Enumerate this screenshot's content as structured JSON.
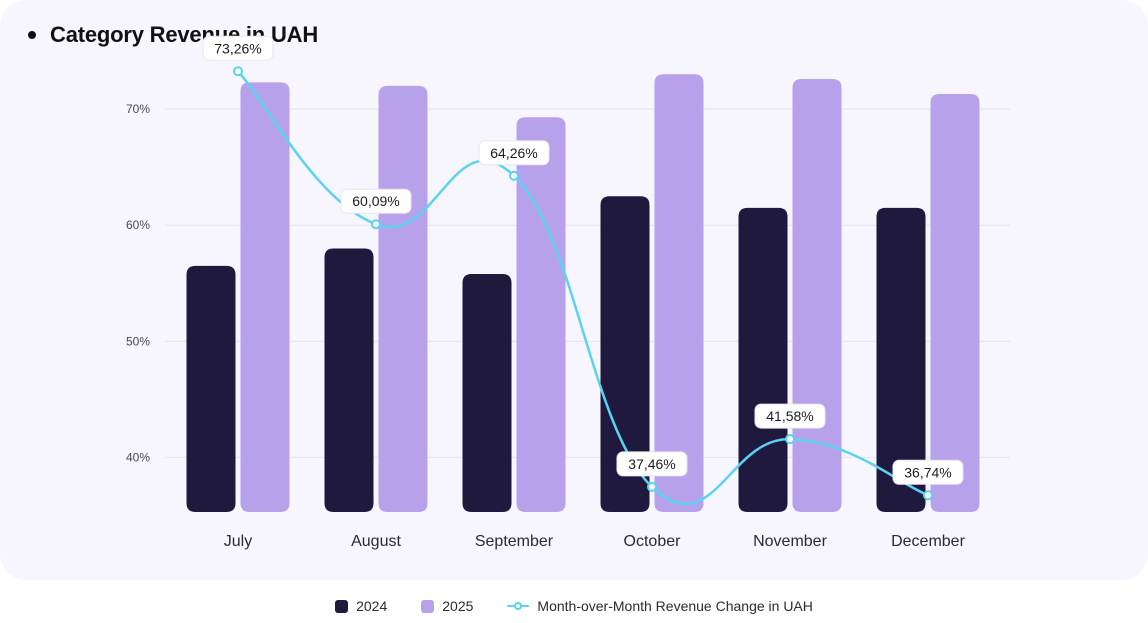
{
  "colors": {
    "background": "#f7f5fd",
    "series_2024": "#1f1a3d",
    "series_2025": "#b6a1ea",
    "line": "#5ad3f3",
    "grid": "#e6e3ee"
  },
  "chart_data": {
    "type": "bar",
    "title": "Category Revenue in UAH",
    "categories": [
      "July",
      "August",
      "September",
      "October",
      "November",
      "December"
    ],
    "series": [
      {
        "name": "2024",
        "kind": "bar",
        "values": [
          56.5,
          58.0,
          55.8,
          62.5,
          61.5,
          61.5
        ]
      },
      {
        "name": "2025",
        "kind": "bar",
        "values": [
          72.3,
          72.0,
          69.3,
          73.0,
          72.6,
          71.3
        ]
      },
      {
        "name": "Month-over-Month Revenue Change in UAH",
        "kind": "line",
        "values": [
          73.26,
          60.09,
          64.26,
          37.46,
          41.58,
          36.74
        ],
        "labels": [
          "73,26%",
          "60,09%",
          "64,26%",
          "37,46%",
          "41,58%",
          "36,74%"
        ]
      }
    ],
    "y_ticks": [
      {
        "value": 40,
        "label": "40%"
      },
      {
        "value": 50,
        "label": "50%"
      },
      {
        "value": 60,
        "label": "60%"
      },
      {
        "value": 70,
        "label": "70%"
      }
    ],
    "ylim": [
      35.3,
      79.4
    ],
    "grid": true,
    "legend_position": "bottom-center"
  },
  "legend": {
    "items": [
      {
        "label": "2024"
      },
      {
        "label": "2025"
      },
      {
        "label": "Month-over-Month Revenue Change in UAH"
      }
    ]
  }
}
